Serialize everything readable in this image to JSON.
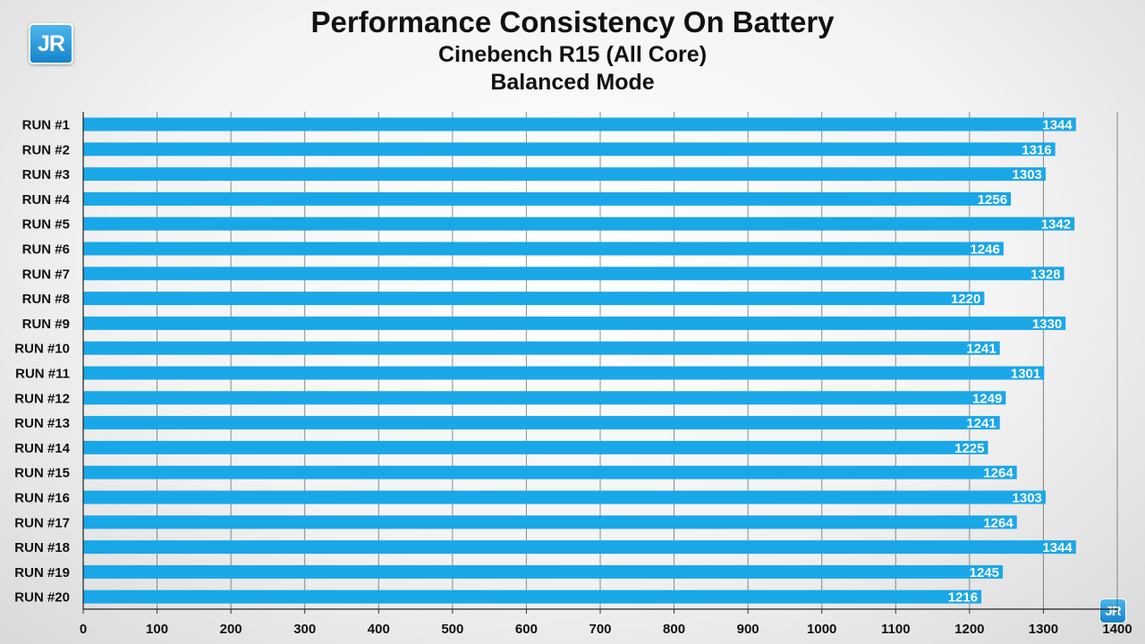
{
  "logo": {
    "text": "JR"
  },
  "chart_data": {
    "type": "bar",
    "orientation": "horizontal",
    "title": "Performance Consistency On Battery",
    "subtitle_lines": [
      "Cinebench R15 (All Core)",
      "Balanced Mode"
    ],
    "categories": [
      "RUN #1",
      "RUN #2",
      "RUN #3",
      "RUN #4",
      "RUN #5",
      "RUN #6",
      "RUN #7",
      "RUN #8",
      "RUN #9",
      "RUN #10",
      "RUN #11",
      "RUN #12",
      "RUN #13",
      "RUN #14",
      "RUN #15",
      "RUN #16",
      "RUN #17",
      "RUN #18",
      "RUN #19",
      "RUN #20"
    ],
    "values": [
      1344,
      1316,
      1303,
      1256,
      1342,
      1246,
      1328,
      1220,
      1330,
      1241,
      1301,
      1249,
      1241,
      1225,
      1264,
      1303,
      1264,
      1344,
      1245,
      1216
    ],
    "xlim": [
      0,
      1400
    ],
    "xticks": [
      0,
      100,
      200,
      300,
      400,
      500,
      600,
      700,
      800,
      900,
      1000,
      1100,
      1200,
      1300,
      1400
    ],
    "grid": true,
    "legend": "none",
    "colors": {
      "bar": "#1aa7e8",
      "gridline": "#333333",
      "data_label": "#ffffff"
    }
  }
}
